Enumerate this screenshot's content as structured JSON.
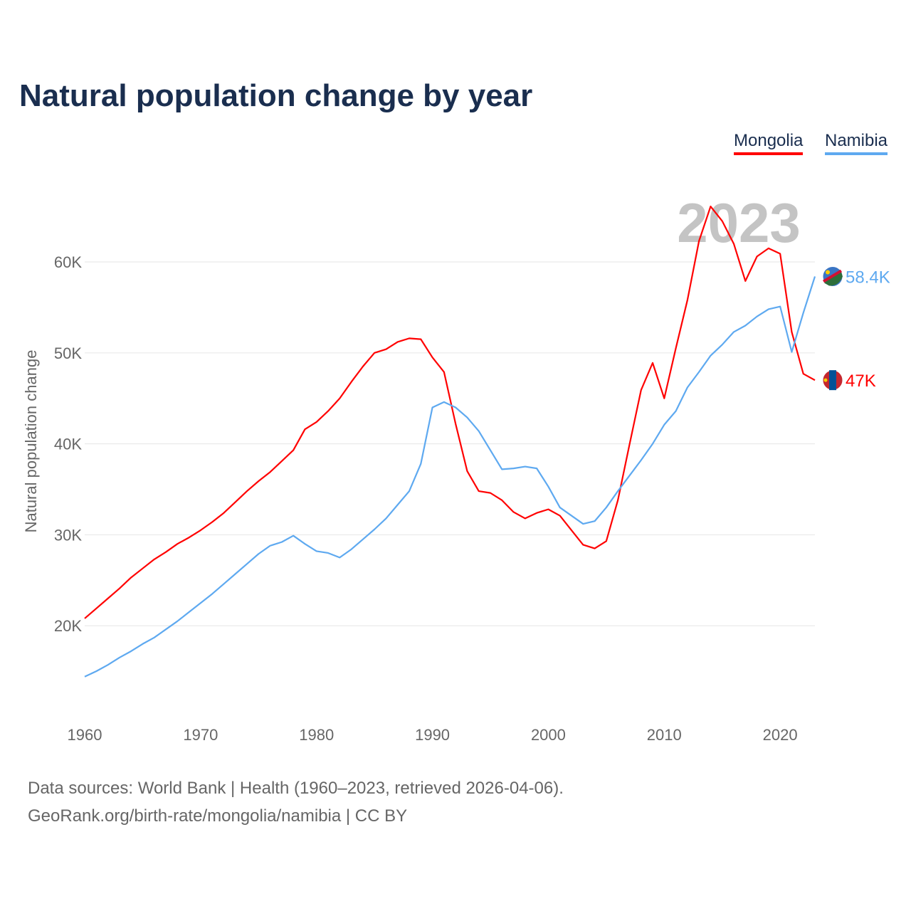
{
  "chart_data": {
    "type": "line",
    "title": "Natural population change by year",
    "xlabel": "",
    "ylabel": "Natural population change",
    "xlim": [
      1960,
      2023
    ],
    "ylim": [
      10000,
      69000
    ],
    "yticks": [
      20000,
      30000,
      40000,
      50000,
      60000
    ],
    "ytick_labels": [
      "20K",
      "30K",
      "40K",
      "50K",
      "60K"
    ],
    "xticks": [
      1960,
      1970,
      1980,
      1990,
      2000,
      2010,
      2020
    ],
    "xtick_labels": [
      "1960",
      "1970",
      "1980",
      "1990",
      "2000",
      "2010",
      "2020"
    ],
    "grid": true,
    "legend_placement": "top-right",
    "year_label": "2023",
    "x": [
      1960,
      1961,
      1962,
      1963,
      1964,
      1965,
      1966,
      1967,
      1968,
      1969,
      1970,
      1971,
      1972,
      1973,
      1974,
      1975,
      1976,
      1977,
      1978,
      1979,
      1980,
      1981,
      1982,
      1983,
      1984,
      1985,
      1986,
      1987,
      1988,
      1989,
      1990,
      1991,
      1992,
      1993,
      1994,
      1995,
      1996,
      1997,
      1998,
      1999,
      2000,
      2001,
      2002,
      2003,
      2004,
      2005,
      2006,
      2007,
      2008,
      2009,
      2010,
      2011,
      2012,
      2013,
      2014,
      2015,
      2016,
      2017,
      2018,
      2019,
      2020,
      2021,
      2022,
      2023
    ],
    "series": [
      {
        "name": "Mongolia",
        "color": "#ff0000",
        "end_label": "47K",
        "values": [
          20800,
          21900,
          23000,
          24100,
          25300,
          26300,
          27300,
          28100,
          29000,
          29700,
          30500,
          31400,
          32400,
          33600,
          34800,
          35900,
          36900,
          38100,
          39300,
          41600,
          42400,
          43600,
          45000,
          46800,
          48500,
          50000,
          50400,
          51200,
          51600,
          51500,
          49500,
          47900,
          42200,
          37000,
          34800,
          34600,
          33800,
          32500,
          31800,
          32400,
          32800,
          32100,
          30500,
          28900,
          28500,
          29300,
          33800,
          39900,
          45900,
          48900,
          45000,
          50500,
          55800,
          62300,
          66100,
          64500,
          62000,
          57900,
          60600,
          61500,
          60900,
          52300,
          47700,
          47000
        ]
      },
      {
        "name": "Namibia",
        "color": "#5ea9f0",
        "end_label": "58.4K",
        "values": [
          14400,
          15000,
          15700,
          16500,
          17200,
          18000,
          18700,
          19600,
          20500,
          21500,
          22500,
          23500,
          24600,
          25700,
          26800,
          27900,
          28800,
          29200,
          29900,
          29000,
          28200,
          28000,
          27500,
          28400,
          29500,
          30600,
          31800,
          33300,
          34800,
          37800,
          44000,
          44600,
          44000,
          42900,
          41400,
          39300,
          37200,
          37300,
          37500,
          37300,
          35300,
          33000,
          32100,
          31200,
          31500,
          33000,
          34800,
          36500,
          38200,
          40000,
          42100,
          43600,
          46200,
          47900,
          49700,
          50900,
          52300,
          53000,
          54000,
          54800,
          55100,
          50100,
          54400,
          58400
        ]
      }
    ]
  },
  "footer": {
    "line1": "Data sources: World Bank | Health (1960–2023, retrieved 2026-04-06).",
    "line2": "GeoRank.org/birth-rate/mongolia/namibia | CC BY"
  }
}
